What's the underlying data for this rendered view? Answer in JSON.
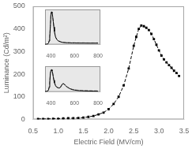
{
  "chart_data": [
    {
      "type": "scatter",
      "xlabel": "Electric Field (MV/cm)",
      "ylabel": "Luminance (Cd/m²)",
      "x": [
        0.6,
        0.7,
        0.8,
        0.9,
        1.0,
        1.1,
        1.2,
        1.3,
        1.4,
        1.5,
        1.6,
        1.7,
        1.8,
        1.9,
        2.0,
        2.1,
        2.2,
        2.3,
        2.4,
        2.5,
        2.55,
        2.6,
        2.65,
        2.7,
        2.75,
        2.8,
        2.85,
        2.9,
        2.95,
        3.0,
        3.05,
        3.1,
        3.15,
        3.2,
        3.25,
        3.3,
        3.35,
        3.4
      ],
      "series": [
        {
          "values": [
            2,
            2,
            2,
            3,
            3,
            4,
            5,
            5,
            6,
            8,
            11,
            15,
            22,
            30,
            45,
            68,
            100,
            150,
            225,
            325,
            365,
            400,
            415,
            412,
            405,
            395,
            378,
            355,
            330,
            305,
            282,
            265,
            252,
            240,
            228,
            215,
            205,
            192
          ],
          "color": "black",
          "marker": "square",
          "line_style": "dashed"
        }
      ],
      "xlim": [
        0.5,
        3.5
      ],
      "ylim": [
        0,
        500
      ],
      "xticks": [
        0.5,
        {
          "value": 1.0,
          "label": "1.0"
        },
        1.5,
        {
          "value": 2.0,
          "label": "2.0"
        },
        2.5,
        {
          "value": 3.0,
          "label": "3.0"
        },
        3.5
      ],
      "yticks": [
        0,
        100,
        200,
        300,
        400,
        500
      ],
      "grid": false
    },
    {
      "type": "line",
      "x": [
        350,
        360,
        370,
        375,
        380,
        385,
        390,
        395,
        400,
        405,
        410,
        415,
        420,
        425,
        430,
        435,
        440,
        450,
        460,
        470,
        480,
        490,
        500,
        520,
        540,
        560,
        580,
        600,
        640,
        680,
        720,
        760,
        800
      ],
      "series": [
        {
          "values": [
            3,
            4,
            7,
            12,
            22,
            48,
            105,
            225,
            375,
            405,
            388,
            343,
            283,
            218,
            163,
            123,
            93,
            65,
            51,
            43,
            38,
            33,
            30,
            27,
            25,
            24,
            23,
            23,
            22,
            22,
            21,
            21,
            21
          ],
          "color": "gray",
          "line_style": "dashed"
        },
        {
          "values": [
            3,
            4,
            6,
            10,
            20,
            45,
            100,
            220,
            370,
            400,
            385,
            340,
            280,
            215,
            160,
            120,
            90,
            62,
            48,
            40,
            35,
            30,
            27,
            24,
            22,
            21,
            20,
            20,
            19,
            19,
            18,
            18,
            18
          ],
          "color": "black",
          "line_style": "solid"
        }
      ],
      "xlim": [
        350,
        820
      ],
      "ylim": [
        0,
        430
      ],
      "xticks": [
        400,
        600,
        800
      ],
      "yticks": [],
      "tick_labels": "x",
      "grid": false,
      "color": "#e8e8e8"
    },
    {
      "type": "line",
      "x": [
        350,
        360,
        370,
        375,
        380,
        385,
        390,
        395,
        400,
        405,
        410,
        415,
        420,
        425,
        430,
        440,
        450,
        460,
        470,
        480,
        490,
        500,
        510,
        520,
        530,
        540,
        550,
        560,
        580,
        600,
        620,
        640,
        660,
        680,
        720,
        760,
        800
      ],
      "series": [
        {
          "values": [
            3,
            4,
            7,
            11,
            20,
            43,
            88,
            158,
            188,
            193,
            183,
            161,
            131,
            103,
            81,
            55,
            43,
            38,
            36,
            41,
            58,
            73,
            71,
            61,
            51,
            43,
            37,
            31,
            23,
            19,
            16,
            14,
            13,
            12,
            11,
            10,
            9
          ],
          "color": "gray",
          "line_style": "dashed"
        },
        {
          "values": [
            3,
            4,
            6,
            10,
            18,
            40,
            85,
            155,
            185,
            190,
            180,
            158,
            128,
            100,
            78,
            52,
            40,
            35,
            33,
            38,
            55,
            70,
            68,
            58,
            48,
            40,
            34,
            28,
            20,
            16,
            13,
            11,
            10,
            9,
            8,
            7,
            6
          ],
          "color": "black",
          "line_style": "solid"
        }
      ],
      "xlim": [
        350,
        820
      ],
      "ylim": [
        0,
        220
      ],
      "xticks": [
        400,
        600,
        800
      ],
      "yticks": [],
      "tick_labels": "x",
      "grid": false,
      "color": "#e8e8e8"
    }
  ]
}
